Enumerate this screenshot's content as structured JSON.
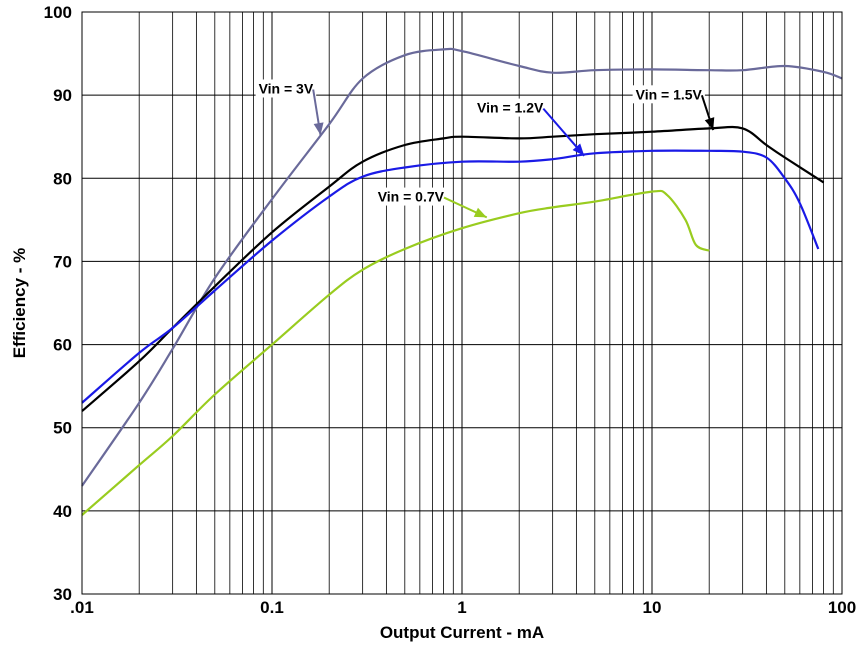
{
  "chart_data": {
    "type": "line",
    "title": "",
    "xlabel": "Output Current - mA",
    "ylabel": "Efficiency - %",
    "xscale": "log",
    "xlim": [
      0.01,
      100
    ],
    "ylim": [
      30,
      100
    ],
    "x_ticks": [
      ".01",
      "0.1",
      "1",
      "10",
      "100"
    ],
    "y_ticks": [
      "30",
      "40",
      "50",
      "60",
      "70",
      "80",
      "90",
      "100"
    ],
    "grid": true,
    "legend": "none",
    "series": [
      {
        "name": "Vin = 3V",
        "color": "#6a6a9a",
        "points": [
          [
            0.01,
            43
          ],
          [
            0.02,
            53
          ],
          [
            0.03,
            59.5
          ],
          [
            0.05,
            68
          ],
          [
            0.1,
            77.5
          ],
          [
            0.2,
            86.5
          ],
          [
            0.3,
            92
          ],
          [
            0.5,
            94.8
          ],
          [
            0.8,
            95.5
          ],
          [
            1,
            95.3
          ],
          [
            2,
            93.5
          ],
          [
            3,
            92.7
          ],
          [
            5,
            93
          ],
          [
            10,
            93.1
          ],
          [
            20,
            93
          ],
          [
            30,
            93
          ],
          [
            50,
            93.5
          ],
          [
            80,
            92.8
          ],
          [
            100,
            92
          ]
        ]
      },
      {
        "name": "Vin = 1.5V",
        "color": "#000000",
        "points": [
          [
            0.01,
            52
          ],
          [
            0.02,
            58
          ],
          [
            0.03,
            62
          ],
          [
            0.05,
            67
          ],
          [
            0.1,
            73.5
          ],
          [
            0.2,
            79
          ],
          [
            0.3,
            82
          ],
          [
            0.5,
            84
          ],
          [
            0.8,
            84.8
          ],
          [
            1,
            85
          ],
          [
            2,
            84.8
          ],
          [
            3,
            85
          ],
          [
            5,
            85.3
          ],
          [
            10,
            85.6
          ],
          [
            20,
            86
          ],
          [
            30,
            86
          ],
          [
            40,
            84
          ],
          [
            50,
            82.5
          ],
          [
            80,
            79.5
          ]
        ]
      },
      {
        "name": "Vin = 1.2V",
        "color": "#1a1ae6",
        "points": [
          [
            0.01,
            53
          ],
          [
            0.02,
            59
          ],
          [
            0.03,
            62
          ],
          [
            0.05,
            66.5
          ],
          [
            0.1,
            72.5
          ],
          [
            0.2,
            77.8
          ],
          [
            0.3,
            80.2
          ],
          [
            0.5,
            81.3
          ],
          [
            1,
            82
          ],
          [
            2,
            82
          ],
          [
            3,
            82.3
          ],
          [
            5,
            83
          ],
          [
            10,
            83.3
          ],
          [
            20,
            83.3
          ],
          [
            30,
            83.2
          ],
          [
            40,
            82.5
          ],
          [
            50,
            80
          ],
          [
            60,
            77
          ],
          [
            75,
            71.5
          ]
        ]
      },
      {
        "name": "Vin = 0.7V",
        "color": "#99cc1f",
        "points": [
          [
            0.01,
            39.5
          ],
          [
            0.02,
            45.5
          ],
          [
            0.03,
            49
          ],
          [
            0.05,
            54
          ],
          [
            0.1,
            60
          ],
          [
            0.2,
            66
          ],
          [
            0.3,
            69
          ],
          [
            0.5,
            71.5
          ],
          [
            1,
            74
          ],
          [
            2,
            75.8
          ],
          [
            3,
            76.5
          ],
          [
            5,
            77.2
          ],
          [
            10,
            78.4
          ],
          [
            12,
            78
          ],
          [
            15,
            75
          ],
          [
            17,
            72
          ],
          [
            20,
            71.3
          ]
        ]
      }
    ],
    "annotations": [
      {
        "text": "Vin = 3V",
        "x": 0.085,
        "y": 90.2,
        "arrow_to": [
          0.18,
          85.2
        ],
        "arrow_color": "#6a6a9a"
      },
      {
        "text": "Vin = 1.2V",
        "x": 1.2,
        "y": 87.9,
        "arrow_to": [
          4.4,
          82.7
        ],
        "arrow_color": "#1a1ae6"
      },
      {
        "text": "Vin = 1.5V",
        "x": 8.2,
        "y": 89.5,
        "arrow_to": [
          21,
          85.8
        ],
        "arrow_color": "#000000"
      },
      {
        "text": "Vin = 0.7V",
        "x": 0.36,
        "y": 77.2,
        "arrow_to": [
          1.35,
          75.3
        ],
        "arrow_color": "#99cc1f"
      }
    ]
  }
}
